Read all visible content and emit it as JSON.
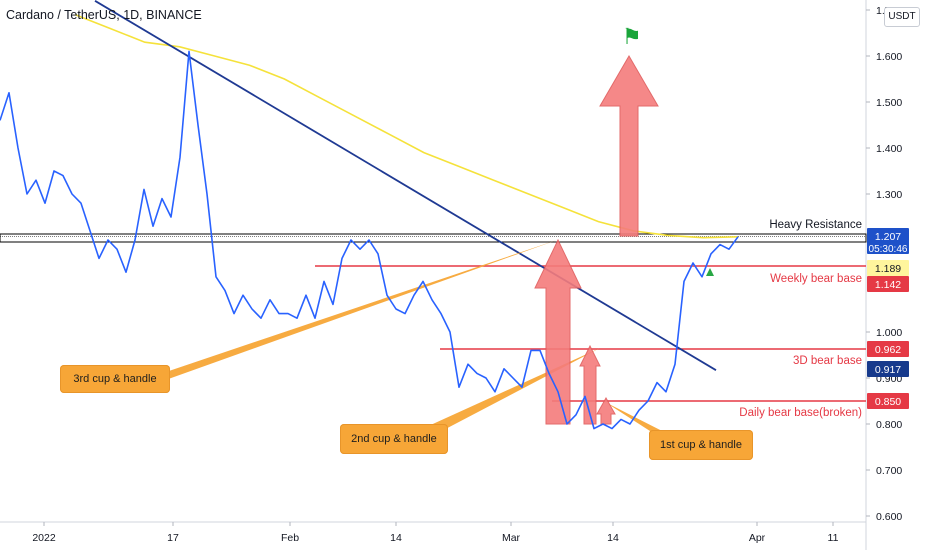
{
  "header": {
    "title": "Cardano / TetherUS, 1D, BINANCE",
    "currency": "USDT"
  },
  "flag_icon": "flag-icon",
  "chart_data": {
    "type": "line",
    "series": [
      {
        "values": [
          1.46,
          1.52,
          1.4,
          1.3,
          1.33,
          1.28,
          1.35,
          1.34,
          1.3,
          1.28,
          1.22,
          1.16,
          1.2,
          1.18,
          1.13,
          1.2,
          1.31,
          1.23,
          1.29,
          1.25,
          1.38,
          1.61,
          1.45,
          1.3,
          1.12,
          1.09,
          1.04,
          1.08,
          1.05,
          1.03,
          1.07,
          1.04,
          1.04,
          1.03,
          1.08,
          1.03,
          1.11,
          1.06,
          1.16,
          1.2,
          1.18,
          1.2,
          1.17,
          1.08,
          1.05,
          1.04,
          1.08,
          1.11,
          1.07,
          1.04,
          1.0,
          0.88,
          0.93,
          0.91,
          0.9,
          0.87,
          0.92,
          0.9,
          0.88,
          0.96,
          0.96,
          0.91,
          0.87,
          0.8,
          0.82,
          0.86,
          0.79,
          0.8,
          0.79,
          0.81,
          0.8,
          0.83,
          0.85,
          0.89,
          0.87,
          0.93,
          1.11,
          1.15,
          1.12,
          1.17,
          1.19,
          1.18,
          1.207
        ]
      }
    ],
    "y_ticks": [
      "1.700",
      "1.600",
      "1.500",
      "1.400",
      "1.300",
      "1.000",
      "0.900",
      "0.800",
      "0.700",
      "0.600"
    ],
    "x_ticks": [
      "2022",
      "17",
      "Feb",
      "14",
      "Mar",
      "14",
      "Apr",
      "11"
    ],
    "ylim": [
      0.59,
      1.72
    ],
    "moving_average": [
      1.69,
      1.66,
      1.63,
      1.62,
      1.6,
      1.58,
      1.55,
      1.51,
      1.47,
      1.43,
      1.39,
      1.36,
      1.33,
      1.3,
      1.27,
      1.24,
      1.22,
      1.21,
      1.205,
      1.207
    ],
    "trendline": {
      "from": 1.72,
      "to": 0.917
    },
    "price_labels": [
      {
        "value": "1.207",
        "color": "#1e51c9",
        "countdown": "05:30:46"
      },
      {
        "value": "1.189",
        "color": "#fff59d"
      },
      {
        "value": "1.142",
        "color": "#e53945"
      },
      {
        "value": "0.962",
        "color": "#e53945"
      },
      {
        "value": "0.917",
        "color": "#173a8c"
      },
      {
        "value": "0.850",
        "color": "#e53945"
      }
    ],
    "annotations": {
      "heavy_resistance": "Heavy Resistance",
      "weekly": "Weekly bear base",
      "three_d": "3D bear base",
      "daily": "Daily bear base(broken)",
      "cup1": "1st cup & handle",
      "cup2": "2nd cup & handle",
      "cup3": "3rd cup & handle"
    },
    "colors": {
      "price_line": "#2962ff",
      "ma_line": "#f5e23b",
      "trend_line": "#1f3a93",
      "bear_base": "#e53945",
      "arrow": "#f47c7c",
      "callout": "#f7a637"
    }
  }
}
